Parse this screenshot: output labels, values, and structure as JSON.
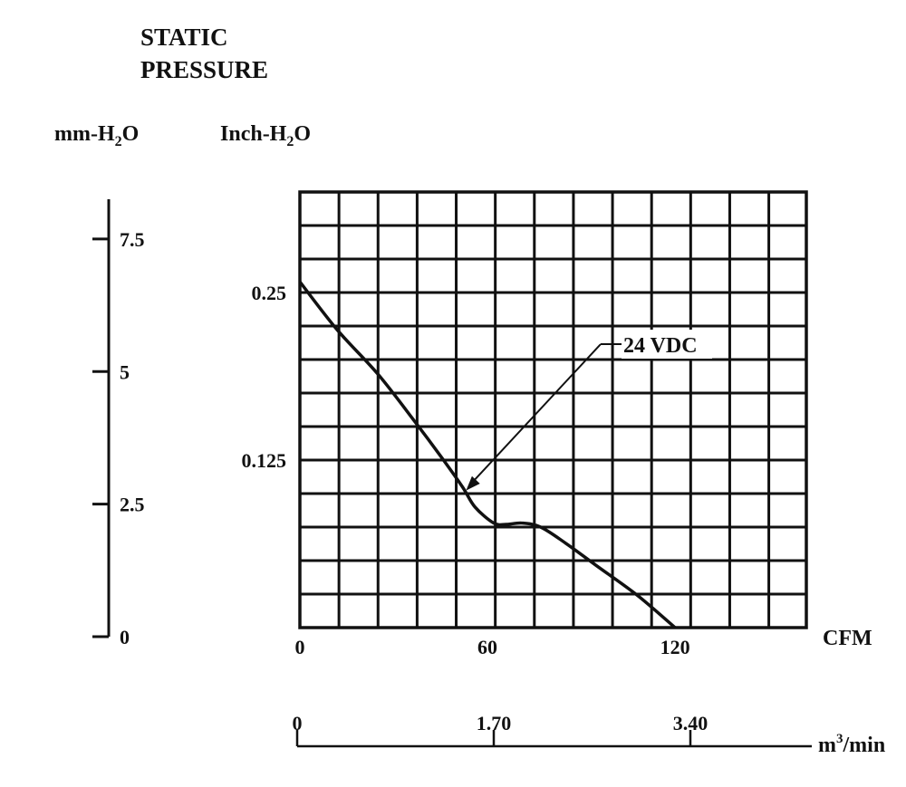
{
  "chart_data": {
    "type": "line",
    "title_line1": "STATIC",
    "title_line2": "PRESSURE",
    "mm_axis": {
      "label_pre": "mm-H",
      "label_sub": "2",
      "label_post": "O",
      "ticks": [
        "0",
        "2.5",
        "5",
        "7.5"
      ],
      "values": [
        0,
        2.5,
        5,
        7.5
      ],
      "range": [
        0,
        8.25
      ]
    },
    "inch_axis": {
      "label_pre": "Inch-H",
      "label_sub": "2",
      "label_post": "O",
      "ticks": [
        "0.125",
        "0.25"
      ],
      "values": [
        0.125,
        0.25
      ],
      "range": [
        0,
        0.325
      ]
    },
    "x_axis": {
      "label": "CFM",
      "ticks": [
        "0",
        "60",
        "120"
      ],
      "values": [
        0,
        60,
        120
      ],
      "range": [
        0,
        162
      ]
    },
    "m3_axis": {
      "label_pre": "m",
      "label_sup": "3",
      "label_post": "/min",
      "ticks": [
        "0",
        "1.70",
        "3.40"
      ],
      "values": [
        0,
        1.7,
        3.4
      ]
    },
    "grid": true,
    "grid_x_step": 12.5,
    "grid_y_step": 0.025,
    "series": [
      {
        "name": "24 VDC",
        "color": "#111111",
        "points": [
          [
            0,
            0.258
          ],
          [
            12,
            0.222
          ],
          [
            25,
            0.189
          ],
          [
            37,
            0.153
          ],
          [
            45,
            0.128
          ],
          [
            52,
            0.105
          ],
          [
            56,
            0.09
          ],
          [
            62,
            0.078
          ],
          [
            66,
            0.077
          ],
          [
            71,
            0.078
          ],
          [
            77,
            0.075
          ],
          [
            85,
            0.063
          ],
          [
            95,
            0.046
          ],
          [
            108,
            0.024
          ],
          [
            120,
            0.0
          ]
        ]
      }
    ],
    "annotation": {
      "text": "24 VDC",
      "points_to": [
        52,
        0.105
      ]
    }
  }
}
